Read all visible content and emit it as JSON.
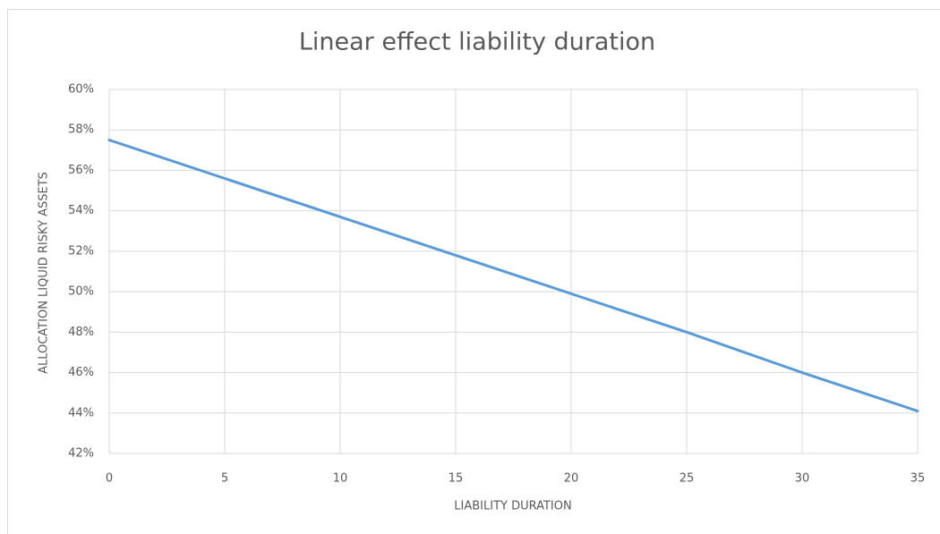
{
  "chart_data": {
    "type": "line",
    "title": "Linear effect liability duration",
    "x_label": "LIABILITY DURATION",
    "y_label": "ALLOCATION LIQUID RISKY ASSETS",
    "x": [
      0,
      5,
      10,
      15,
      20,
      25,
      30,
      35
    ],
    "values": [
      57.5,
      55.6,
      53.7,
      51.8,
      49.9,
      48.0,
      46.0,
      44.1
    ],
    "color": "#5b9bd5",
    "xlim": [
      0,
      35
    ],
    "xticks": [
      0,
      5,
      10,
      15,
      20,
      25,
      30,
      35
    ],
    "ylim": [
      42,
      60
    ],
    "yticks": [
      {
        "value": 42,
        "label": "42%"
      },
      {
        "value": 44,
        "label": "44%"
      },
      {
        "value": 46,
        "label": "46%"
      },
      {
        "value": 48,
        "label": "48%"
      },
      {
        "value": 50,
        "label": "50%"
      },
      {
        "value": 52,
        "label": "52%"
      },
      {
        "value": 54,
        "label": "54%"
      },
      {
        "value": 56,
        "label": "56%"
      },
      {
        "value": 58,
        "label": "58%"
      },
      {
        "value": 60,
        "label": "60%"
      }
    ],
    "grid": true
  }
}
